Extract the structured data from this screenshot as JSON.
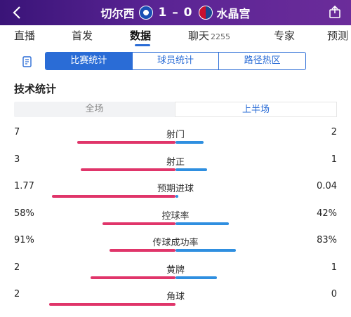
{
  "header": {
    "home_team": "切尔西",
    "away_team": "水晶宫",
    "score": "1 – 0"
  },
  "tabs": [
    {
      "label": "直播"
    },
    {
      "label": "首发"
    },
    {
      "label": "数据",
      "active": true
    },
    {
      "label": "聊天",
      "count": "2255"
    },
    {
      "label": "专家"
    },
    {
      "label": "预测"
    }
  ],
  "subtabs": [
    {
      "label": "比赛统计",
      "active": true
    },
    {
      "label": "球员统计"
    },
    {
      "label": "路径热区"
    }
  ],
  "section_title": "技术统计",
  "periods": [
    {
      "label": "全场"
    },
    {
      "label": "上半场",
      "active": true
    }
  ],
  "colors": {
    "home": "#e0356a",
    "away": "#2f8fe0",
    "accent": "#2a6cd6"
  },
  "stats": [
    {
      "label": "射门",
      "home": "7",
      "away": "2",
      "home_share": 0.78,
      "away_share": 0.22
    },
    {
      "label": "射正",
      "home": "3",
      "away": "1",
      "home_share": 0.75,
      "away_share": 0.25
    },
    {
      "label": "预期进球",
      "home": "1.77",
      "away": "0.04",
      "home_share": 0.98,
      "away_share": 0.02
    },
    {
      "label": "控球率",
      "home": "58%",
      "away": "42%",
      "home_share": 0.58,
      "away_share": 0.42
    },
    {
      "label": "传球成功率",
      "home": "91%",
      "away": "83%",
      "home_share": 0.52,
      "away_share": 0.48
    },
    {
      "label": "黄牌",
      "home": "2",
      "away": "1",
      "home_share": 0.67,
      "away_share": 0.33
    },
    {
      "label": "角球",
      "home": "2",
      "away": "0",
      "home_share": 1.0,
      "away_share": 0.0
    }
  ]
}
